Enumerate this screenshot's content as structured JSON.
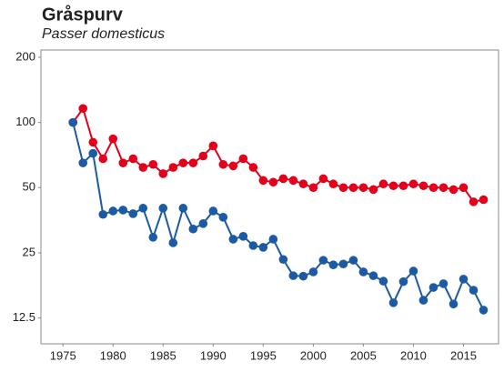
{
  "chart_data": {
    "type": "line",
    "title": "Gråspurv",
    "subtitle": "Passer domesticus",
    "x": [
      1976,
      1977,
      1978,
      1979,
      1980,
      1981,
      1982,
      1983,
      1984,
      1985,
      1986,
      1987,
      1988,
      1989,
      1990,
      1991,
      1992,
      1993,
      1994,
      1995,
      1996,
      1997,
      1998,
      1999,
      2000,
      2001,
      2002,
      2003,
      2004,
      2005,
      2006,
      2007,
      2008,
      2009,
      2010,
      2011,
      2012,
      2013,
      2014,
      2015,
      2016,
      2017
    ],
    "series": [
      {
        "name": "red",
        "color": "#e2001a",
        "values": [
          100,
          116,
          81,
          68,
          84,
          65,
          68,
          62,
          64,
          58,
          62,
          65,
          65,
          70,
          78,
          64,
          63,
          68,
          62,
          54,
          53,
          55,
          54,
          52,
          50,
          55,
          52,
          50,
          50,
          50,
          49,
          52,
          51,
          51,
          52,
          51,
          50,
          50,
          49,
          50,
          43,
          44
        ]
      },
      {
        "name": "blue",
        "color": "#1c5aa3",
        "values": [
          100,
          65,
          72,
          37.6,
          39,
          39.4,
          37.9,
          40.2,
          29.5,
          40.2,
          27.8,
          40.2,
          32.2,
          34.1,
          39,
          36.5,
          28.9,
          29.8,
          27,
          26.5,
          28.9,
          23.3,
          19.6,
          19.5,
          20.4,
          23.1,
          22,
          22.2,
          23.1,
          20.4,
          19.6,
          18.5,
          14.7,
          18.4,
          20.6,
          15.1,
          17.3,
          18,
          14.5,
          18.9,
          16.8,
          13.6
        ]
      }
    ],
    "xlim": [
      1972.8,
      2018.5
    ],
    "xticks": [
      1975,
      1980,
      1985,
      1990,
      1995,
      2000,
      2005,
      2010,
      2015
    ],
    "ylim": [
      9.5,
      216
    ],
    "yticks": [
      12.5,
      25,
      50,
      100,
      200
    ],
    "log_y": true
  }
}
